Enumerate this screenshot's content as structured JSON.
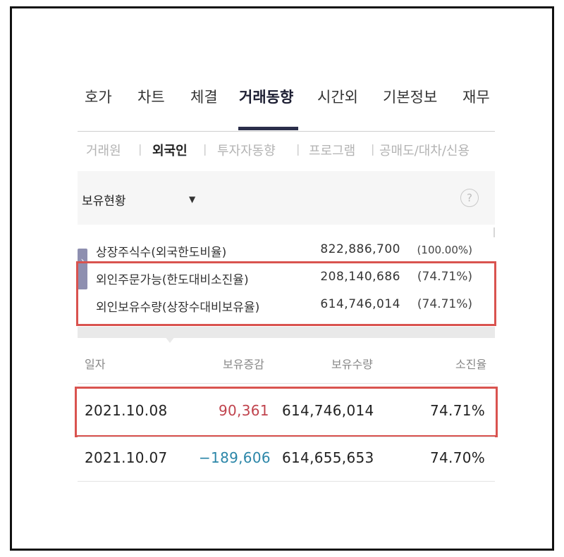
{
  "main_tabs": [
    {
      "label": "호가",
      "active": false
    },
    {
      "label": "차트",
      "active": false
    },
    {
      "label": "체결",
      "active": false
    },
    {
      "label": "거래동향",
      "active": true
    },
    {
      "label": "시간외",
      "active": false
    },
    {
      "label": "기본정보",
      "active": false
    },
    {
      "label": "재무",
      "active": false
    }
  ],
  "sub_tabs": [
    {
      "label": "거래원",
      "active": false
    },
    {
      "label": "외국인",
      "active": true
    },
    {
      "label": "투자자동향",
      "active": false
    },
    {
      "label": "프로그램",
      "active": false
    },
    {
      "label": "공매도/대차/신용",
      "active": false
    }
  ],
  "dropdown": {
    "label": "보유현황",
    "arrow": "▼",
    "help_icon": "?"
  },
  "side_handle_icon": "›",
  "info": [
    {
      "label": "상장주식수(외국한도비율)",
      "value": "822,886,700",
      "pct": "(100.00%)"
    },
    {
      "label": "외인주문가능(한도대비소진율)",
      "value": "208,140,686",
      "pct": "(74.71%)"
    },
    {
      "label": "외인보유수량(상장수대비보유율)",
      "value": "614,746,014",
      "pct": "(74.71%)"
    }
  ],
  "table": {
    "headers": {
      "date": "일자",
      "change": "보유증감",
      "holdings": "보유수량",
      "ratio": "소진율"
    },
    "rows": [
      {
        "date": "2021.10.08",
        "change": "90,361",
        "change_dir": "up",
        "holdings": "614,746,014",
        "ratio": "74.71%"
      },
      {
        "date": "2021.10.07",
        "change": "−189,606",
        "change_dir": "down",
        "holdings": "614,655,653",
        "ratio": "74.70%"
      }
    ]
  },
  "colors": {
    "highlight_box": "#d9534f",
    "up": "#c0434d",
    "down": "#2b86a8",
    "tab_underline": "#2b2e4a"
  }
}
